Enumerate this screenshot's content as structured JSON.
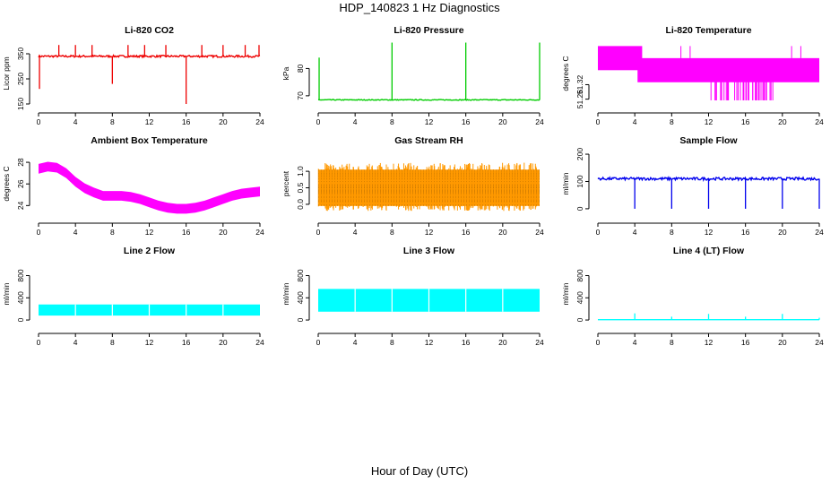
{
  "figure": {
    "title": "HDP_140823  1 Hz Diagnostics",
    "x_common_label": "Hour of Day (UTC)"
  },
  "chart_data": [
    {
      "type": "line",
      "title": "Li-820 CO2",
      "ylabel": "Licor ppm",
      "color": "#ee0000",
      "xlim": [
        0,
        24
      ],
      "xticks": [
        0,
        4,
        8,
        12,
        16,
        20,
        24
      ],
      "ylim": [
        150,
        400
      ],
      "yticks": [
        150,
        250,
        350
      ],
      "series": [
        {
          "base": 340,
          "noise": 4,
          "band_low": null,
          "spikes": [
            [
              0.1,
              210
            ],
            [
              2.2,
              385
            ],
            [
              4,
              385
            ],
            [
              5.8,
              385
            ],
            [
              8,
              230
            ],
            [
              9.7,
              385
            ],
            [
              11.5,
              385
            ],
            [
              13.8,
              385
            ],
            [
              16,
              150
            ],
            [
              17.7,
              385
            ],
            [
              20,
              385
            ],
            [
              22.4,
              385
            ],
            [
              23.9,
              385
            ]
          ]
        }
      ]
    },
    {
      "type": "line",
      "title": "Li-820 Pressure",
      "ylabel": "kPa",
      "color": "#00cc00",
      "xlim": [
        0,
        24
      ],
      "xticks": [
        0,
        4,
        8,
        12,
        16,
        20,
        24
      ],
      "ylim": [
        67,
        90
      ],
      "yticks": [
        70,
        80
      ],
      "series": [
        {
          "base": 68.5,
          "noise": 0.15,
          "band_low": null,
          "spikes": [
            [
              0.1,
              84
            ],
            [
              8,
              89.5
            ],
            [
              16,
              89.5
            ],
            [
              24,
              89.5
            ]
          ]
        }
      ]
    },
    {
      "type": "area",
      "title": "Li-820 Temperature",
      "ylabel": "degrees C",
      "color": "#ff00ff",
      "xlim": [
        0,
        24
      ],
      "xticks": [
        0,
        4,
        8,
        12,
        16,
        20,
        24
      ],
      "ylim": [
        51.24,
        51.5
      ],
      "yticks": [
        51.26,
        51.32
      ],
      "bands": [
        {
          "x": [
            0,
            4.8
          ],
          "low": 51.38,
          "high": 51.48
        },
        {
          "x": [
            4.3,
            24
          ],
          "low": 51.33,
          "high": 51.43
        }
      ]
    },
    {
      "type": "area",
      "title": "Ambient Box Temperature",
      "ylabel": "degrees C",
      "color": "#ff00ff",
      "xlim": [
        0,
        24
      ],
      "xticks": [
        0,
        4,
        8,
        12,
        16,
        20,
        24
      ],
      "ylim": [
        23.2,
        29
      ],
      "yticks": [
        24,
        26,
        28
      ],
      "curve": [
        [
          0,
          27.4
        ],
        [
          1,
          27.6
        ],
        [
          2,
          27.5
        ],
        [
          3,
          27.0
        ],
        [
          4,
          26.2
        ],
        [
          5,
          25.6
        ],
        [
          6,
          25.2
        ],
        [
          7,
          24.9
        ],
        [
          8,
          24.9
        ],
        [
          9,
          24.9
        ],
        [
          10,
          24.8
        ],
        [
          11,
          24.6
        ],
        [
          12,
          24.3
        ],
        [
          13,
          24.0
        ],
        [
          14,
          23.8
        ],
        [
          15,
          23.7
        ],
        [
          16,
          23.7
        ],
        [
          17,
          23.8
        ],
        [
          18,
          24.0
        ],
        [
          19,
          24.3
        ],
        [
          20,
          24.6
        ],
        [
          21,
          24.9
        ],
        [
          22,
          25.1
        ],
        [
          23,
          25.2
        ],
        [
          24,
          25.3
        ]
      ],
      "band_width": 0.9
    },
    {
      "type": "area",
      "title": "Gas Stream RH",
      "ylabel": "percent",
      "color": "#ff9900",
      "xlim": [
        0,
        24
      ],
      "xticks": [
        0,
        4,
        8,
        12,
        16,
        20,
        24
      ],
      "ylim": [
        -0.3,
        1.6
      ],
      "yticks": [
        0.0,
        0.5,
        1.0
      ],
      "band": {
        "low": -0.05,
        "high": 1.05,
        "noise": 0.15
      }
    },
    {
      "type": "line",
      "title": "Sample Flow",
      "ylabel": "ml/min",
      "color": "#0000ee",
      "xlim": [
        0,
        24
      ],
      "xticks": [
        0,
        4,
        8,
        12,
        16,
        20,
        24
      ],
      "ylim": [
        -20,
        210
      ],
      "yticks": [
        0,
        100,
        200
      ],
      "series": [
        {
          "base": 110,
          "noise": 5,
          "band_low": null,
          "spikes": [
            [
              4,
              0
            ],
            [
              8,
              0
            ],
            [
              12,
              0
            ],
            [
              16,
              0
            ],
            [
              20,
              0
            ],
            [
              24,
              0
            ]
          ]
        }
      ]
    },
    {
      "type": "area",
      "title": "Line 2 Flow",
      "ylabel": "ml/min",
      "color": "#00ffff",
      "xlim": [
        0,
        24
      ],
      "xticks": [
        0,
        4,
        8,
        12,
        16,
        20,
        24
      ],
      "ylim": [
        -80,
        1050
      ],
      "yticks": [
        0,
        400,
        800
      ],
      "band": {
        "low": 80,
        "high": 280,
        "noise": 0
      },
      "gaps": [
        4,
        8,
        12,
        16,
        20
      ]
    },
    {
      "type": "area",
      "title": "Line 3 Flow",
      "ylabel": "ml/min",
      "color": "#00ffff",
      "xlim": [
        0,
        24
      ],
      "xticks": [
        0,
        4,
        8,
        12,
        16,
        20,
        24
      ],
      "ylim": [
        -80,
        1050
      ],
      "yticks": [
        0,
        400,
        800
      ],
      "band": {
        "low": 150,
        "high": 560,
        "noise": 0
      },
      "gaps": [
        4,
        8,
        12,
        16,
        20
      ]
    },
    {
      "type": "line",
      "title": "Line 4 (LT) Flow",
      "ylabel": "ml/min",
      "color": "#00ffff",
      "xlim": [
        0,
        24
      ],
      "xticks": [
        0,
        4,
        8,
        12,
        16,
        20,
        24
      ],
      "ylim": [
        -80,
        1050
      ],
      "yticks": [
        0,
        400,
        800
      ],
      "series": [
        {
          "base": 5,
          "noise": 0,
          "band_low": null,
          "spikes": [
            [
              4,
              120
            ],
            [
              8,
              60
            ],
            [
              12,
              110
            ],
            [
              16,
              60
            ],
            [
              20,
              110
            ],
            [
              24,
              40
            ]
          ]
        }
      ]
    }
  ]
}
